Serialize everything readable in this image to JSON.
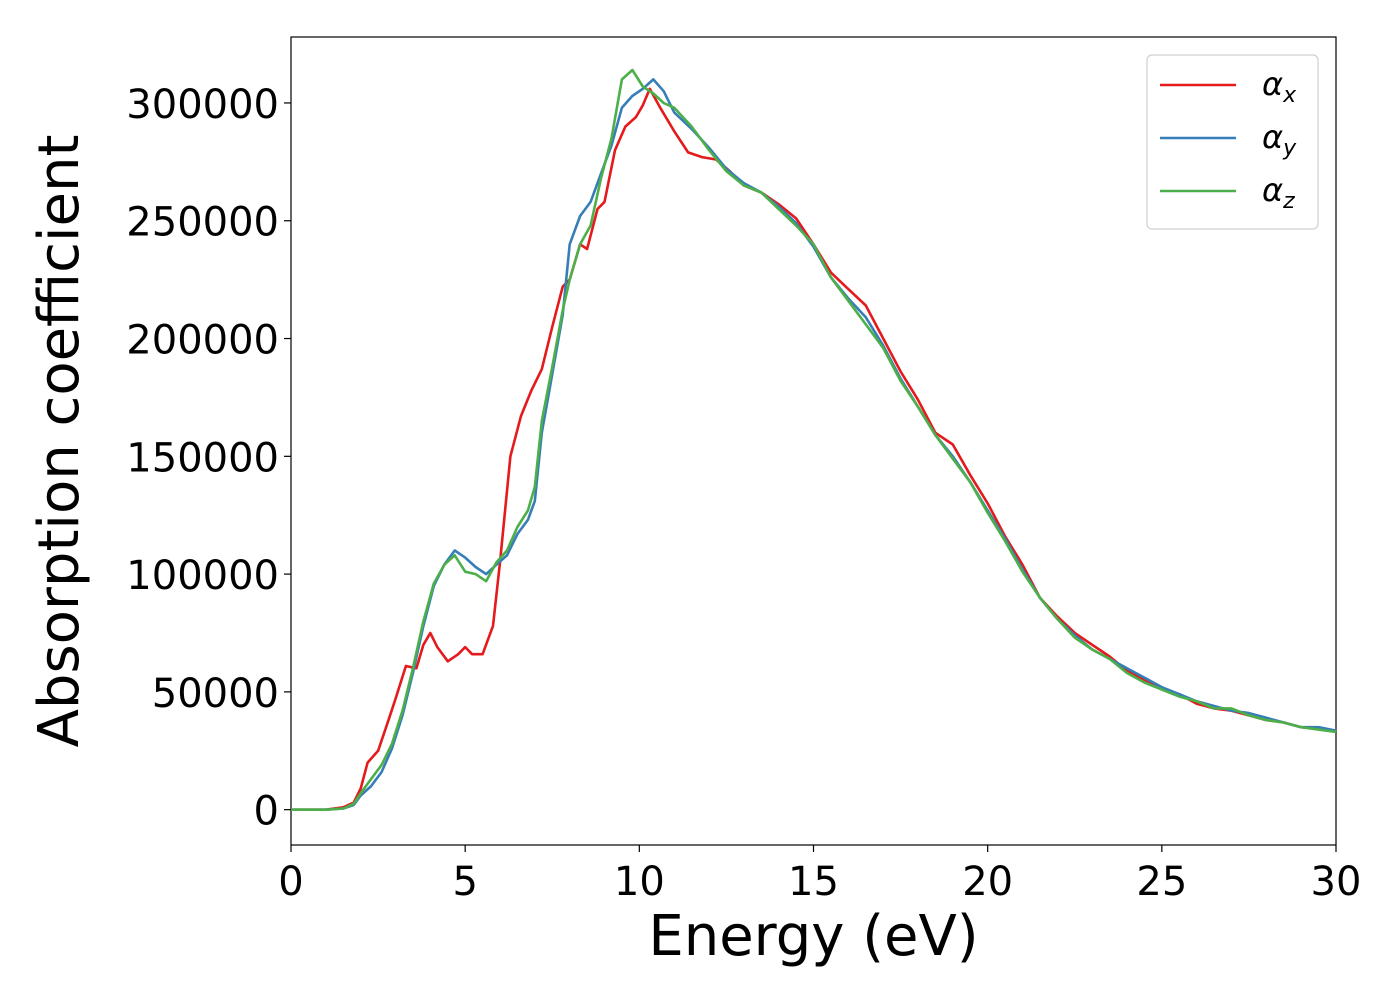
{
  "chart_data": {
    "type": "line",
    "xlabel": "Energy (eV)",
    "ylabel": "Absorption coefficient",
    "xlim": [
      0,
      30
    ],
    "ylim": [
      -15000,
      328000
    ],
    "xticks": [
      0,
      5,
      10,
      15,
      20,
      25,
      30
    ],
    "xtick_labels": [
      "0",
      "5",
      "10",
      "15",
      "20",
      "25",
      "30"
    ],
    "yticks": [
      0,
      50000,
      100000,
      150000,
      200000,
      250000,
      300000
    ],
    "ytick_labels": [
      "0",
      "50000",
      "100000",
      "150000",
      "200000",
      "250000",
      "300000"
    ],
    "grid": false,
    "legend_position": "top-right",
    "series": [
      {
        "name": "αx",
        "base": "α",
        "sub": "x",
        "color": "#e41a1c",
        "points": [
          [
            0,
            0
          ],
          [
            1,
            0
          ],
          [
            1.5,
            1000
          ],
          [
            1.8,
            3000
          ],
          [
            2.0,
            9000
          ],
          [
            2.2,
            20000
          ],
          [
            2.5,
            25000
          ],
          [
            2.8,
            38000
          ],
          [
            3.0,
            47000
          ],
          [
            3.3,
            61000
          ],
          [
            3.6,
            60000
          ],
          [
            3.8,
            70000
          ],
          [
            4.0,
            75000
          ],
          [
            4.2,
            69000
          ],
          [
            4.5,
            63000
          ],
          [
            4.8,
            66000
          ],
          [
            5.0,
            69000
          ],
          [
            5.2,
            66000
          ],
          [
            5.5,
            66000
          ],
          [
            5.8,
            78000
          ],
          [
            6.0,
            105000
          ],
          [
            6.3,
            150000
          ],
          [
            6.6,
            167000
          ],
          [
            6.9,
            178000
          ],
          [
            7.2,
            187000
          ],
          [
            7.5,
            205000
          ],
          [
            7.8,
            222000
          ],
          [
            8.0,
            225000
          ],
          [
            8.3,
            240000
          ],
          [
            8.5,
            238000
          ],
          [
            8.8,
            255000
          ],
          [
            9.0,
            258000
          ],
          [
            9.3,
            280000
          ],
          [
            9.6,
            290000
          ],
          [
            9.9,
            294000
          ],
          [
            10.1,
            299000
          ],
          [
            10.3,
            306000
          ],
          [
            10.6,
            298000
          ],
          [
            11.0,
            288000
          ],
          [
            11.4,
            279000
          ],
          [
            11.8,
            277000
          ],
          [
            12.2,
            276000
          ],
          [
            12.6,
            271000
          ],
          [
            13.0,
            265000
          ],
          [
            13.5,
            262000
          ],
          [
            14.0,
            257000
          ],
          [
            14.5,
            251000
          ],
          [
            15.0,
            240000
          ],
          [
            15.5,
            228000
          ],
          [
            16.0,
            221000
          ],
          [
            16.5,
            214000
          ],
          [
            17.0,
            200000
          ],
          [
            17.5,
            186000
          ],
          [
            18.0,
            174000
          ],
          [
            18.5,
            160000
          ],
          [
            19.0,
            155000
          ],
          [
            19.5,
            142000
          ],
          [
            20.0,
            130000
          ],
          [
            20.5,
            116000
          ],
          [
            21.0,
            104000
          ],
          [
            21.5,
            90000
          ],
          [
            22.0,
            82000
          ],
          [
            22.5,
            75000
          ],
          [
            23.0,
            70000
          ],
          [
            23.5,
            65000
          ],
          [
            24.0,
            59000
          ],
          [
            24.5,
            55000
          ],
          [
            25.0,
            51000
          ],
          [
            25.5,
            49000
          ],
          [
            26.0,
            45000
          ],
          [
            26.5,
            43000
          ],
          [
            27.0,
            42000
          ],
          [
            27.5,
            40000
          ],
          [
            28.0,
            38000
          ],
          [
            28.5,
            37000
          ],
          [
            29.0,
            35000
          ],
          [
            29.5,
            34500
          ],
          [
            30.0,
            33000
          ]
        ]
      },
      {
        "name": "αy",
        "base": "α",
        "sub": "y",
        "color": "#377eb8",
        "points": [
          [
            0,
            0
          ],
          [
            1,
            0
          ],
          [
            1.5,
            500
          ],
          [
            1.8,
            2000
          ],
          [
            2.0,
            6000
          ],
          [
            2.3,
            10000
          ],
          [
            2.6,
            16000
          ],
          [
            2.9,
            26000
          ],
          [
            3.2,
            40000
          ],
          [
            3.5,
            58000
          ],
          [
            3.8,
            78000
          ],
          [
            4.1,
            95000
          ],
          [
            4.4,
            104000
          ],
          [
            4.7,
            110000
          ],
          [
            5.0,
            107000
          ],
          [
            5.3,
            103000
          ],
          [
            5.6,
            100000
          ],
          [
            5.9,
            104000
          ],
          [
            6.2,
            108000
          ],
          [
            6.5,
            117000
          ],
          [
            6.8,
            123000
          ],
          [
            7.0,
            131000
          ],
          [
            7.2,
            160000
          ],
          [
            7.5,
            185000
          ],
          [
            7.8,
            210000
          ],
          [
            8.0,
            240000
          ],
          [
            8.3,
            252000
          ],
          [
            8.6,
            258000
          ],
          [
            8.9,
            270000
          ],
          [
            9.2,
            282000
          ],
          [
            9.5,
            298000
          ],
          [
            9.8,
            303000
          ],
          [
            10.1,
            306000
          ],
          [
            10.4,
            310000
          ],
          [
            10.7,
            305000
          ],
          [
            11.0,
            296000
          ],
          [
            11.5,
            289000
          ],
          [
            12.0,
            281000
          ],
          [
            12.5,
            272000
          ],
          [
            13.0,
            266000
          ],
          [
            13.5,
            262000
          ],
          [
            14.0,
            256000
          ],
          [
            14.5,
            249000
          ],
          [
            15.0,
            239000
          ],
          [
            15.5,
            226000
          ],
          [
            16.0,
            217000
          ],
          [
            16.5,
            209000
          ],
          [
            17.0,
            197000
          ],
          [
            17.5,
            183000
          ],
          [
            18.0,
            171000
          ],
          [
            18.5,
            159000
          ],
          [
            19.0,
            150000
          ],
          [
            19.5,
            139000
          ],
          [
            20.0,
            127000
          ],
          [
            20.5,
            115000
          ],
          [
            21.0,
            102000
          ],
          [
            21.5,
            90000
          ],
          [
            22.0,
            81000
          ],
          [
            22.5,
            74000
          ],
          [
            23.0,
            68000
          ],
          [
            23.5,
            64000
          ],
          [
            24.0,
            60000
          ],
          [
            24.5,
            56000
          ],
          [
            25.0,
            52000
          ],
          [
            25.5,
            49000
          ],
          [
            26.0,
            46000
          ],
          [
            26.5,
            44000
          ],
          [
            27.0,
            42000
          ],
          [
            27.5,
            41000
          ],
          [
            28.0,
            39000
          ],
          [
            28.5,
            37000
          ],
          [
            29.0,
            35000
          ],
          [
            29.5,
            35000
          ],
          [
            30.0,
            33500
          ]
        ]
      },
      {
        "name": "αz",
        "base": "α",
        "sub": "z",
        "color": "#4daf4a",
        "points": [
          [
            0,
            0
          ],
          [
            1,
            0
          ],
          [
            1.5,
            500
          ],
          [
            1.8,
            2500
          ],
          [
            2.0,
            7000
          ],
          [
            2.3,
            13000
          ],
          [
            2.6,
            19000
          ],
          [
            2.9,
            28000
          ],
          [
            3.2,
            42000
          ],
          [
            3.5,
            60000
          ],
          [
            3.8,
            80000
          ],
          [
            4.1,
            96000
          ],
          [
            4.4,
            104000
          ],
          [
            4.7,
            108000
          ],
          [
            5.0,
            101000
          ],
          [
            5.3,
            100000
          ],
          [
            5.6,
            97000
          ],
          [
            5.9,
            105000
          ],
          [
            6.2,
            110000
          ],
          [
            6.5,
            120000
          ],
          [
            6.8,
            127000
          ],
          [
            7.0,
            137000
          ],
          [
            7.2,
            165000
          ],
          [
            7.5,
            188000
          ],
          [
            7.8,
            212000
          ],
          [
            8.0,
            225000
          ],
          [
            8.3,
            240000
          ],
          [
            8.6,
            248000
          ],
          [
            8.9,
            268000
          ],
          [
            9.2,
            285000
          ],
          [
            9.5,
            310000
          ],
          [
            9.8,
            314000
          ],
          [
            10.1,
            307000
          ],
          [
            10.4,
            304000
          ],
          [
            10.7,
            300000
          ],
          [
            11.0,
            298000
          ],
          [
            11.5,
            290000
          ],
          [
            12.0,
            280000
          ],
          [
            12.5,
            271000
          ],
          [
            13.0,
            265000
          ],
          [
            13.5,
            262000
          ],
          [
            14.0,
            255000
          ],
          [
            14.5,
            248000
          ],
          [
            15.0,
            240000
          ],
          [
            15.5,
            226000
          ],
          [
            16.0,
            216000
          ],
          [
            16.5,
            206000
          ],
          [
            17.0,
            196000
          ],
          [
            17.5,
            182000
          ],
          [
            18.0,
            171000
          ],
          [
            18.5,
            159000
          ],
          [
            19.0,
            149000
          ],
          [
            19.5,
            139000
          ],
          [
            20.0,
            126000
          ],
          [
            20.5,
            114000
          ],
          [
            21.0,
            101000
          ],
          [
            21.5,
            90000
          ],
          [
            22.0,
            81000
          ],
          [
            22.5,
            73000
          ],
          [
            23.0,
            68000
          ],
          [
            23.5,
            64000
          ],
          [
            24.0,
            58000
          ],
          [
            24.5,
            54000
          ],
          [
            25.0,
            51000
          ],
          [
            25.5,
            48000
          ],
          [
            26.0,
            46000
          ],
          [
            26.5,
            43000
          ],
          [
            27.0,
            43000
          ],
          [
            27.5,
            40000
          ],
          [
            28.0,
            38000
          ],
          [
            28.5,
            37000
          ],
          [
            29.0,
            35000
          ],
          [
            29.5,
            34000
          ],
          [
            30.0,
            33000
          ]
        ]
      }
    ]
  }
}
